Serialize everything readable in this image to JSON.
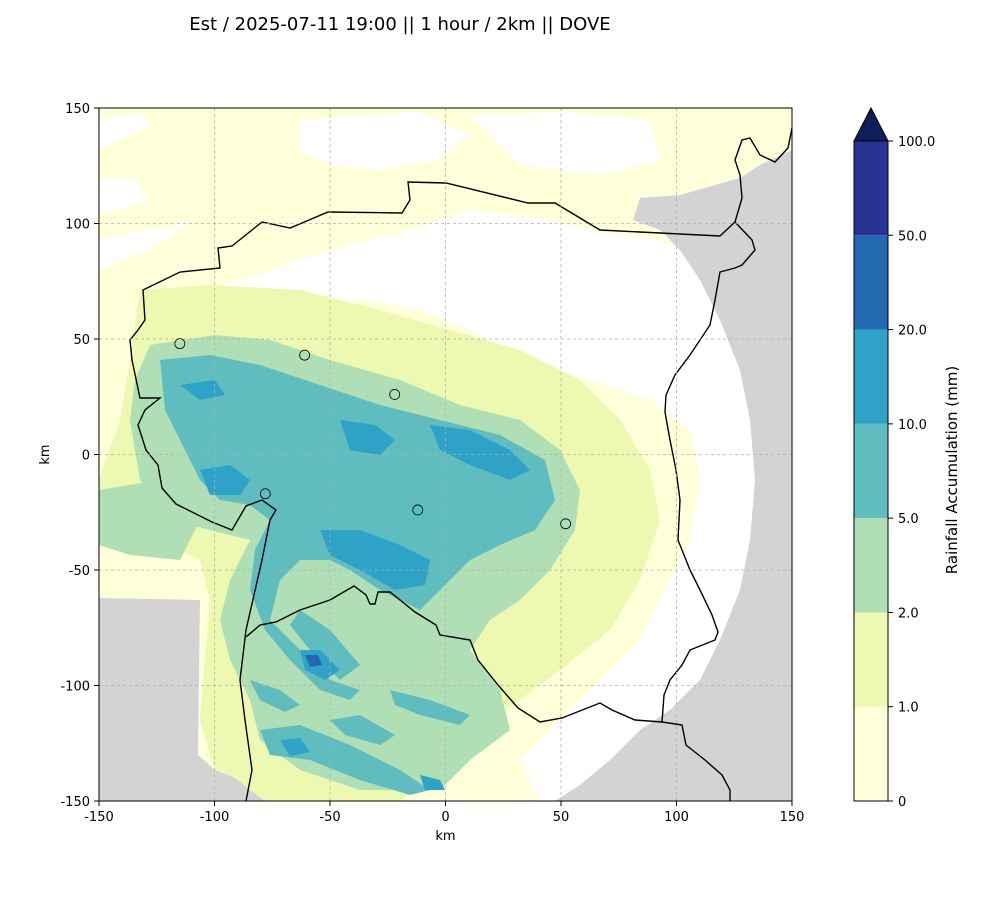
{
  "title": "Est / 2025-07-11 19:00 || 1 hour / 2km || DOVE",
  "map": {
    "xlabel": "km",
    "ylabel": "km",
    "xlim": [
      -150,
      150
    ],
    "ylim": [
      -150,
      150
    ],
    "x_ticks": [
      -150,
      -100,
      -50,
      0,
      50,
      100,
      150
    ],
    "y_ticks": [
      -150,
      -100,
      -50,
      0,
      50,
      100,
      150
    ],
    "grid": true,
    "no_coverage_color": "#d3d3d3",
    "stations": [
      {
        "x": -115,
        "y": 48
      },
      {
        "x": -61,
        "y": 43
      },
      {
        "x": -22,
        "y": 26
      },
      {
        "x": -78,
        "y": -17
      },
      {
        "x": -12,
        "y": -24
      },
      {
        "x": 52,
        "y": -30
      }
    ]
  },
  "colorbar": {
    "label": "Rainfall Accumulation (mm)",
    "levels": [
      "0",
      "1.0",
      "2.0",
      "5.0",
      "10.0",
      "20.0",
      "50.0",
      "100.0"
    ],
    "colors": [
      "#ffffd9",
      "#edf8b1",
      "#b0dfb6",
      "#5fbcbf",
      "#2fa2c8",
      "#2369b0",
      "#283493"
    ],
    "extend_color": "#0d1e5a"
  }
}
